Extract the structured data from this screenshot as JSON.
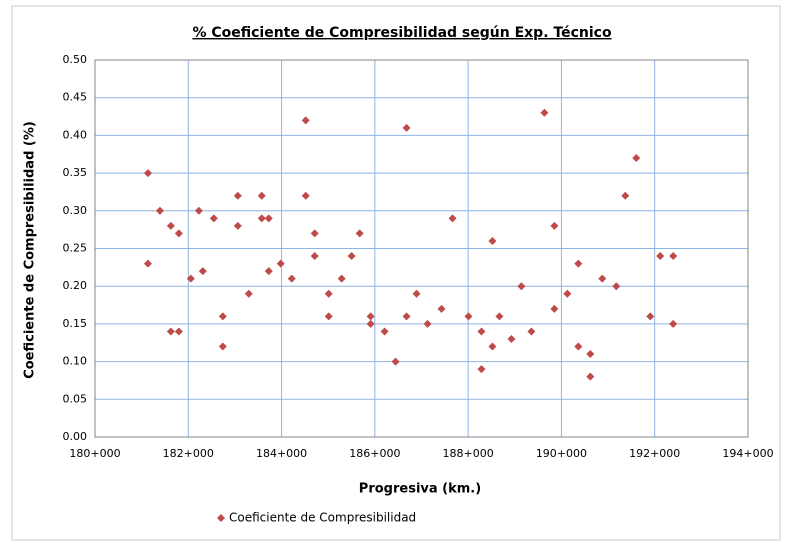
{
  "chart_data": {
    "type": "scatter",
    "title": "% Coeficiente de Compresibilidad según Exp. Técnico",
    "x_label": "Progresiva (km.)",
    "y_label": "Coeficiente de Compresibilidad (%)",
    "x": [
      181135,
      181135,
      181392,
      181627,
      181627,
      181798,
      181798,
      182055,
      182227,
      182312,
      182548,
      182740,
      182740,
      183062,
      183062,
      183297,
      183575,
      183575,
      183725,
      183725,
      183982,
      184218,
      184518,
      184518,
      184710,
      184710,
      185010,
      185010,
      185288,
      185502,
      185674,
      185909,
      185909,
      186209,
      186444,
      186680,
      186680,
      186894,
      187130,
      187429,
      187665,
      188007,
      188286,
      188286,
      188521,
      188521,
      188671,
      188928,
      189142,
      189356,
      189635,
      189849,
      189849,
      190127,
      190362,
      190362,
      190619,
      190619,
      190876,
      191176,
      191369,
      191604,
      191904,
      192118,
      192396,
      192396
    ],
    "series": [
      {
        "name": "Coeficiente de Compresibilidad",
        "color": "#be4b48",
        "values": [
          0.35,
          0.23,
          0.3,
          0.28,
          0.14,
          0.14,
          0.27,
          0.21,
          0.3,
          0.22,
          0.29,
          0.16,
          0.12,
          0.32,
          0.28,
          0.19,
          0.32,
          0.29,
          0.29,
          0.22,
          0.23,
          0.21,
          0.42,
          0.32,
          0.27,
          0.24,
          0.19,
          0.16,
          0.21,
          0.24,
          0.27,
          0.16,
          0.15,
          0.14,
          0.1,
          0.41,
          0.16,
          0.19,
          0.15,
          0.17,
          0.29,
          0.16,
          0.14,
          0.09,
          0.26,
          0.12,
          0.16,
          0.13,
          0.2,
          0.14,
          0.43,
          0.28,
          0.17,
          0.19,
          0.23,
          0.12,
          0.11,
          0.08,
          0.21,
          0.2,
          0.32,
          0.37,
          0.16,
          0.24,
          0.24,
          0.15
        ]
      }
    ],
    "xlim": [
      180000,
      194000
    ],
    "xticks": [
      {
        "value": 180000,
        "label": "180+000"
      },
      {
        "value": 182000,
        "label": "182+000"
      },
      {
        "value": 184000,
        "label": "184+000"
      },
      {
        "value": 186000,
        "label": "186+000"
      },
      {
        "value": 188000,
        "label": "188+000"
      },
      {
        "value": 190000,
        "label": "190+000"
      },
      {
        "value": 192000,
        "label": "192+000"
      },
      {
        "value": 194000,
        "label": "194+000"
      }
    ],
    "ylim": [
      0,
      0.5
    ],
    "yticks": [
      {
        "value": 0,
        "label": "0.00"
      },
      {
        "value": 0.05,
        "label": "0.05"
      },
      {
        "value": 0.1,
        "label": "0.10"
      },
      {
        "value": 0.15,
        "label": "0.15"
      },
      {
        "value": 0.2,
        "label": "0.20"
      },
      {
        "value": 0.25,
        "label": "0.25"
      },
      {
        "value": 0.3,
        "label": "0.30"
      },
      {
        "value": 0.35,
        "label": "0.35"
      },
      {
        "value": 0.4,
        "label": "0.40"
      },
      {
        "value": 0.45,
        "label": "0.45"
      },
      {
        "value": 0.5,
        "label": "0.50"
      }
    ],
    "grid": true,
    "legend": "bottom"
  }
}
